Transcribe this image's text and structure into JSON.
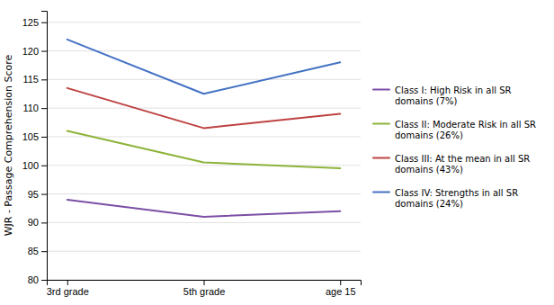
{
  "chart_data": {
    "type": "line",
    "categories": [
      "3rd grade",
      "5th grade",
      "age 15"
    ],
    "series": [
      {
        "name": "Class I:  High Risk in all SR\ndomains (7%)",
        "color": "#7B4FA6",
        "values": [
          94,
          91,
          92
        ]
      },
      {
        "name": "Class II:  Moderate Risk in all SR\ndomains (26%)",
        "color": "#8DB33A",
        "values": [
          106,
          100.5,
          99.5
        ]
      },
      {
        "name": "Class III:  At the mean in all SR\ndomains (43%)",
        "color": "#BE4242",
        "values": [
          113.5,
          106.5,
          109
        ]
      },
      {
        "name": "Class IV:  Strengths in all SR\ndomains (24%)",
        "color": "#4472C4",
        "values": [
          122,
          112.5,
          118
        ]
      }
    ],
    "ylabel": "WJR - Passage Comprehension Score",
    "ylim": [
      80,
      127
    ],
    "yticks": [
      80,
      85,
      90,
      95,
      100,
      105,
      110,
      115,
      120,
      125
    ],
    "grid": true,
    "legend": "right"
  }
}
